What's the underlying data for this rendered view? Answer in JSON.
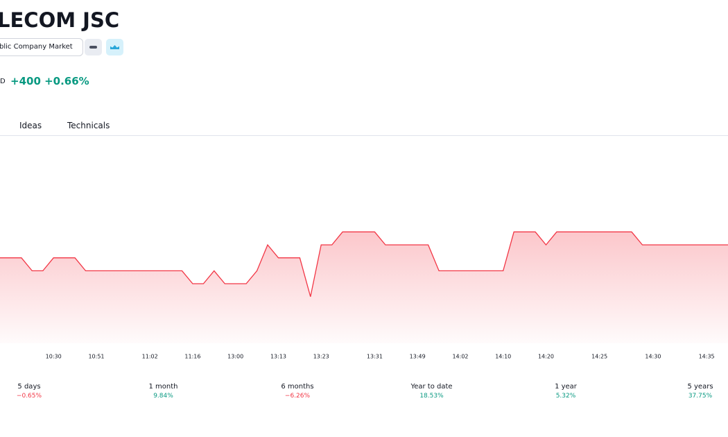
{
  "header": {
    "title": "LECOM JSC",
    "market": "blic Company Market",
    "currency": "D",
    "change": "+400 +0.66%",
    "change_color": "#089981"
  },
  "tabs": [
    "Ideas",
    "Technicals"
  ],
  "chart_data": {
    "type": "line",
    "color": "#f23645",
    "categories": [
      null,
      null,
      null,
      null,
      null,
      "10:30",
      null,
      null,
      null,
      "10:51",
      null,
      null,
      null,
      null,
      "11:02",
      null,
      null,
      null,
      "11:16",
      null,
      null,
      null,
      "13:00",
      null,
      null,
      null,
      "13:13",
      null,
      null,
      null,
      "13:23",
      null,
      null,
      null,
      null,
      "13:31",
      null,
      null,
      null,
      "13:49",
      null,
      null,
      null,
      "14:02",
      null,
      null,
      null,
      "14:10",
      null,
      null,
      null,
      "14:20",
      null,
      null,
      null,
      null,
      "14:25",
      null,
      null,
      null,
      null,
      "14:30",
      null,
      null,
      null,
      null,
      "14:35",
      null,
      null
    ],
    "values": [
      60900,
      60900,
      60900,
      60800,
      60800,
      60900,
      60900,
      60900,
      60800,
      60800,
      60800,
      60800,
      60800,
      60800,
      60800,
      60800,
      60800,
      60800,
      60700,
      60700,
      60800,
      60700,
      60700,
      60700,
      60800,
      61000,
      60900,
      60900,
      60900,
      60600,
      61000,
      61000,
      61100,
      61100,
      61100,
      61100,
      61000,
      61000,
      61000,
      61000,
      61000,
      60800,
      60800,
      60800,
      60800,
      60800,
      60800,
      60800,
      61100,
      61100,
      61100,
      61000,
      61100,
      61100,
      61100,
      61100,
      61100,
      61100,
      61100,
      61100,
      61000,
      61000,
      61000,
      61000,
      61000,
      61000,
      61000,
      61000,
      61000
    ],
    "ylim": [
      60240,
      61840
    ]
  },
  "performance": [
    {
      "period": "5 days",
      "change": "−0.65%",
      "color": "#f23645"
    },
    {
      "period": "1 month",
      "change": "9.84%",
      "color": "#089981"
    },
    {
      "period": "6 months",
      "change": "−6.26%",
      "color": "#f23645"
    },
    {
      "period": "Year to date",
      "change": "18.53%",
      "color": "#089981"
    },
    {
      "period": "1 year",
      "change": "5.32%",
      "color": "#089981"
    },
    {
      "period": "5 years",
      "change": "37.75%",
      "color": "#089981"
    }
  ]
}
